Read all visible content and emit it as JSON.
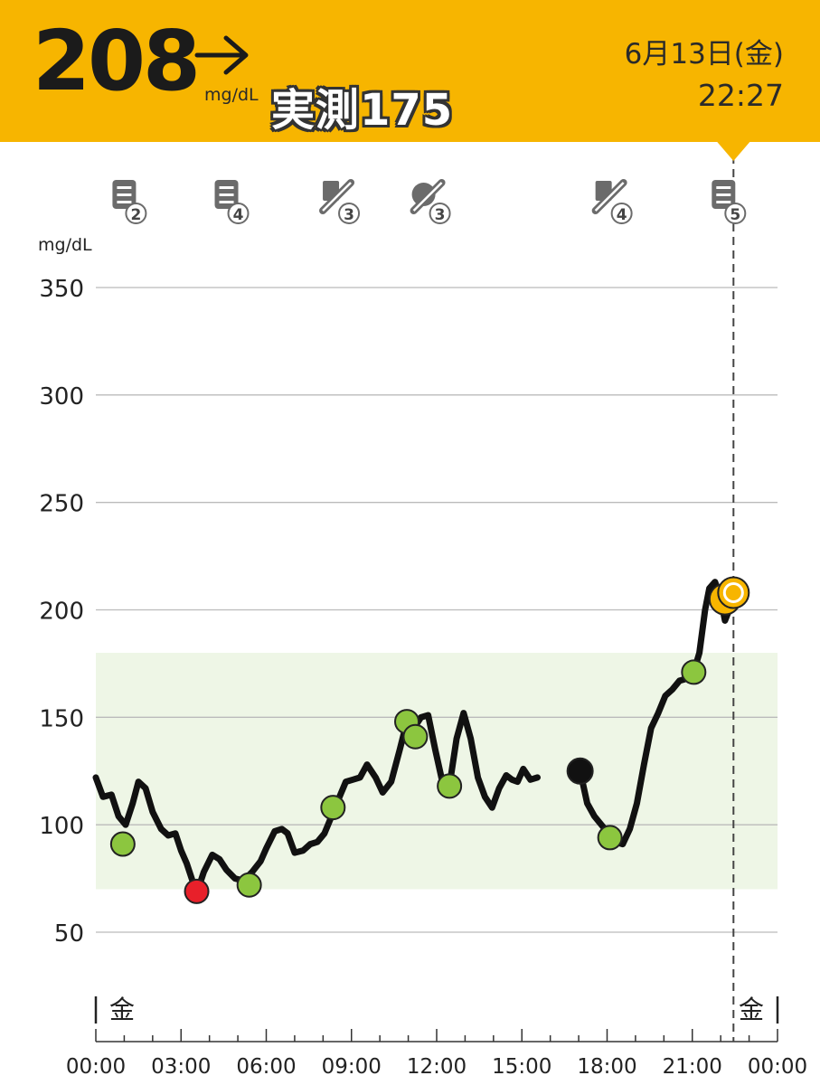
{
  "header": {
    "reading": "208",
    "unit": "mg/dL",
    "measured_label": "実測175",
    "date": "6月13日(金)",
    "time": "22:27",
    "background": "#f7b500",
    "trend_icon": "arrow-right-icon"
  },
  "event_markers": [
    {
      "icon": "note-icon",
      "hour": 1.0,
      "count": "2"
    },
    {
      "icon": "note-icon",
      "hour": 4.6,
      "count": "4"
    },
    {
      "icon": "insulin-pen-icon",
      "hour": 8.5,
      "count": "3"
    },
    {
      "icon": "food-insulin-icon",
      "hour": 11.7,
      "count": "3"
    },
    {
      "icon": "insulin-pen-icon",
      "hour": 18.1,
      "count": "4"
    },
    {
      "icon": "note-icon",
      "hour": 22.1,
      "count": "5"
    }
  ],
  "chart_data": {
    "type": "line",
    "ylabel": "mg/dL",
    "ylim": [
      20,
      370
    ],
    "xlim": [
      0,
      24
    ],
    "yticks": [
      "350",
      "300",
      "250",
      "200",
      "150",
      "100",
      "50"
    ],
    "ytick_values": [
      350,
      300,
      250,
      200,
      150,
      100,
      50
    ],
    "xtick_labels": [
      "00:00",
      "03:00",
      "06:00",
      "09:00",
      "12:00",
      "15:00",
      "18:00",
      "21:00",
      "00:00"
    ],
    "xtick_hours": [
      0,
      3,
      6,
      9,
      12,
      15,
      18,
      21,
      24
    ],
    "day_labels": [
      {
        "text": "金",
        "hour": 0
      },
      {
        "text": "金",
        "hour": 24
      }
    ],
    "target_range": [
      70,
      180
    ],
    "current_hour": 22.45,
    "colors": {
      "line": "#111111",
      "target_band": "#eef6e6",
      "in_range": "#8cc63f",
      "low": "#e8202a",
      "current": "#f7b500",
      "grid": "#bbbbbb"
    },
    "series": [
      {
        "x": [
          0.0,
          0.25,
          0.55,
          0.8,
          1.05,
          1.3,
          1.5,
          1.75,
          2.0,
          2.3,
          2.55,
          2.8,
          3.0,
          3.2,
          3.45,
          3.6,
          3.8,
          4.1,
          4.35,
          4.6,
          4.9,
          5.2,
          5.5,
          5.8,
          6.0,
          6.3,
          6.55,
          6.75,
          7.0,
          7.3,
          7.55,
          7.8,
          8.05,
          8.3,
          8.55,
          8.8,
          9.05,
          9.3,
          9.55,
          9.85,
          10.1,
          10.4,
          10.7,
          10.95,
          11.2,
          11.45,
          11.7,
          11.95,
          12.2,
          12.45,
          12.7,
          12.95,
          13.2,
          13.45,
          13.7,
          13.95,
          14.2,
          14.45,
          14.65,
          14.85,
          15.05,
          15.3,
          15.55
        ],
        "y": [
          122,
          113,
          114,
          104,
          100,
          110,
          120,
          117,
          106,
          98,
          95,
          96,
          88,
          82,
          72,
          70,
          78,
          86,
          84,
          79,
          75,
          74,
          78,
          83,
          89,
          97,
          98,
          96,
          87,
          88,
          91,
          92,
          96,
          104,
          112,
          120,
          121,
          122,
          128,
          122,
          115,
          120,
          135,
          148,
          145,
          150,
          151,
          135,
          120,
          118,
          140,
          152,
          140,
          122,
          113,
          108,
          117,
          123,
          121,
          120,
          126,
          121,
          122
        ]
      },
      {
        "x": [
          17.05,
          17.3,
          17.55,
          17.8,
          18.05,
          18.3,
          18.55,
          18.8,
          19.05,
          19.3,
          19.55,
          19.8,
          20.05,
          20.3,
          20.55,
          20.8,
          21.05,
          21.25,
          21.45,
          21.6,
          21.8,
          22.0,
          22.15,
          22.3,
          22.45
        ],
        "y": [
          125,
          110,
          104,
          100,
          96,
          92,
          91,
          98,
          110,
          128,
          145,
          152,
          160,
          163,
          167,
          168,
          171,
          180,
          200,
          210,
          213,
          205,
          195,
          200,
          208
        ]
      }
    ],
    "points": [
      {
        "x": 0.95,
        "y": 91,
        "kind": "in_range"
      },
      {
        "x": 3.55,
        "y": 69,
        "kind": "low"
      },
      {
        "x": 5.4,
        "y": 72,
        "kind": "in_range"
      },
      {
        "x": 8.35,
        "y": 108,
        "kind": "in_range"
      },
      {
        "x": 10.95,
        "y": 148,
        "kind": "in_range"
      },
      {
        "x": 11.25,
        "y": 141,
        "kind": "in_range"
      },
      {
        "x": 12.45,
        "y": 118,
        "kind": "in_range"
      },
      {
        "x": 17.05,
        "y": 125,
        "kind": "black"
      },
      {
        "x": 18.1,
        "y": 94,
        "kind": "in_range"
      },
      {
        "x": 21.05,
        "y": 171,
        "kind": "in_range"
      },
      {
        "x": 22.15,
        "y": 205,
        "kind": "current"
      },
      {
        "x": 22.45,
        "y": 208,
        "kind": "current"
      }
    ]
  }
}
